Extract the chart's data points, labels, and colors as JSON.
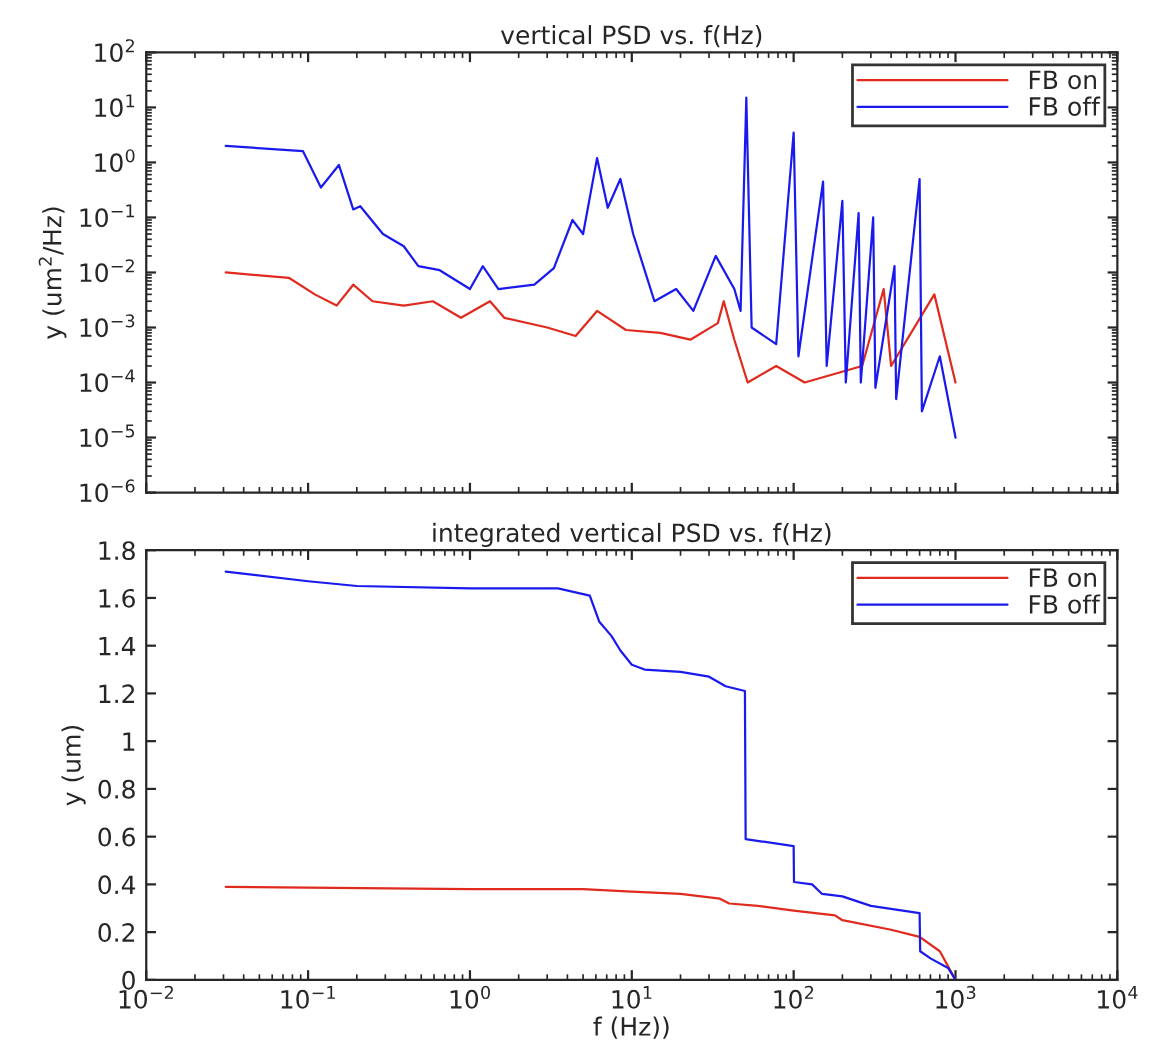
{
  "chart_data": [
    {
      "type": "line",
      "title": "vertical PSD vs. f(Hz)",
      "ylabel": "y (um$^{2}$/Hz)",
      "log": "xy",
      "tick_labels": "y",
      "legend": "top right",
      "grid": false,
      "xlim": [
        0.01,
        10000
      ],
      "xticks": [
        0.01,
        0.1,
        1,
        10,
        100,
        1000,
        10000
      ],
      "ylim": [
        1e-06,
        100
      ],
      "yticks": [
        {
          "value": 1e-06,
          "label": "10$^{−6}$"
        },
        {
          "value": 1e-05,
          "label": "10$^{−5}$"
        },
        {
          "value": 0.0001,
          "label": "10$^{−4}$"
        },
        {
          "value": 0.001,
          "label": "10$^{−3}$"
        },
        {
          "value": 0.01,
          "label": "10$^{−2}$"
        },
        {
          "value": 0.1,
          "label": "10$^{−1}$"
        },
        {
          "value": 1,
          "label": "10$^{0}$"
        },
        {
          "value": 10,
          "label": "10$^{1}$"
        },
        {
          "value": 100,
          "label": "10$^{2}$"
        }
      ],
      "series": [
        {
          "name": "FB on",
          "color": "#e02a1e",
          "x": [
            0.031,
            0.076,
            0.11,
            0.15,
            0.19,
            0.25,
            0.39,
            0.59,
            0.88,
            1.33,
            1.63,
            3.0,
            4.5,
            6.1,
            9.2,
            15,
            23,
            34,
            37,
            43,
            52,
            78,
            117,
            265,
            360,
            400,
            740,
            1000
          ],
          "values": [
            0.01,
            0.008,
            0.004,
            0.0025,
            0.006,
            0.003,
            0.0025,
            0.003,
            0.0015,
            0.003,
            0.0015,
            0.001,
            0.0007,
            0.002,
            0.0009,
            0.0008,
            0.0006,
            0.0012,
            0.003,
            0.0006,
            0.0001,
            0.0002,
            0.0001,
            0.0002,
            0.005,
            0.0002,
            0.004,
            0.0001
          ]
        },
        {
          "name": "FB off",
          "color": "#1a1aee",
          "x": [
            0.031,
            0.093,
            0.12,
            0.155,
            0.19,
            0.21,
            0.29,
            0.39,
            0.48,
            0.65,
            1.0,
            1.2,
            1.5,
            2.5,
            3.3,
            4.3,
            5.0,
            6.1,
            7.1,
            8.5,
            10.2,
            13.8,
            18.8,
            24,
            33,
            43,
            47,
            51,
            55,
            78,
            100,
            107,
            152,
            160,
            200,
            210,
            252,
            260,
            310,
            320,
            420,
            430,
            600,
            620,
            800,
            1000
          ],
          "values": [
            2.0,
            1.6,
            0.35,
            0.9,
            0.14,
            0.16,
            0.05,
            0.03,
            0.013,
            0.011,
            0.005,
            0.013,
            0.005,
            0.006,
            0.012,
            0.09,
            0.05,
            1.2,
            0.15,
            0.5,
            0.05,
            0.003,
            0.005,
            0.002,
            0.02,
            0.005,
            0.002,
            15,
            0.001,
            0.0005,
            3.5,
            0.0003,
            0.45,
            0.0002,
            0.2,
            0.0001,
            0.12,
            0.0001,
            0.1,
            8e-05,
            0.013,
            5e-05,
            0.5,
            3e-05,
            0.0003,
            1e-05
          ]
        }
      ]
    },
    {
      "type": "line",
      "title": "integrated vertical PSD vs. f(Hz)",
      "xlabel": "f (Hz))",
      "ylabel": "y (um)",
      "log": "x",
      "legend": "top right",
      "grid": false,
      "xlim": [
        0.01,
        10000
      ],
      "xticks": [
        {
          "value": 0.01,
          "label": "10$^{−2}$"
        },
        {
          "value": 0.1,
          "label": "10$^{−1}$"
        },
        {
          "value": 1,
          "label": "10$^{0}$"
        },
        {
          "value": 10,
          "label": "10$^{1}$"
        },
        {
          "value": 100,
          "label": "10$^{2}$"
        },
        {
          "value": 1000,
          "label": "10$^{3}$"
        },
        {
          "value": 10000,
          "label": "10$^{4}$"
        }
      ],
      "ylim": [
        0,
        1.8
      ],
      "yticks": [
        0,
        0.2,
        0.4,
        0.6,
        0.8,
        1,
        1.2,
        1.4,
        1.6,
        1.8
      ],
      "series": [
        {
          "name": "FB on",
          "color": "#e02a1e",
          "x": [
            0.031,
            1,
            5,
            10,
            20,
            35,
            40,
            60,
            100,
            180,
            200,
            400,
            600,
            800,
            1000
          ],
          "values": [
            0.39,
            0.38,
            0.38,
            0.37,
            0.36,
            0.34,
            0.32,
            0.31,
            0.29,
            0.27,
            0.25,
            0.21,
            0.18,
            0.12,
            0.0
          ]
        },
        {
          "name": "FB off",
          "color": "#1a1aee",
          "x": [
            0.031,
            0.1,
            0.2,
            1,
            3.5,
            5.5,
            6.3,
            7.5,
            8.5,
            10,
            12,
            20,
            30,
            38,
            50,
            50.5,
            100,
            100.5,
            130,
            150,
            200,
            300,
            600,
            605,
            700,
            900,
            1000
          ],
          "values": [
            1.71,
            1.67,
            1.65,
            1.64,
            1.64,
            1.61,
            1.5,
            1.44,
            1.38,
            1.32,
            1.3,
            1.29,
            1.27,
            1.23,
            1.21,
            0.59,
            0.56,
            0.41,
            0.4,
            0.36,
            0.35,
            0.31,
            0.28,
            0.12,
            0.09,
            0.05,
            0.0
          ]
        }
      ]
    }
  ]
}
